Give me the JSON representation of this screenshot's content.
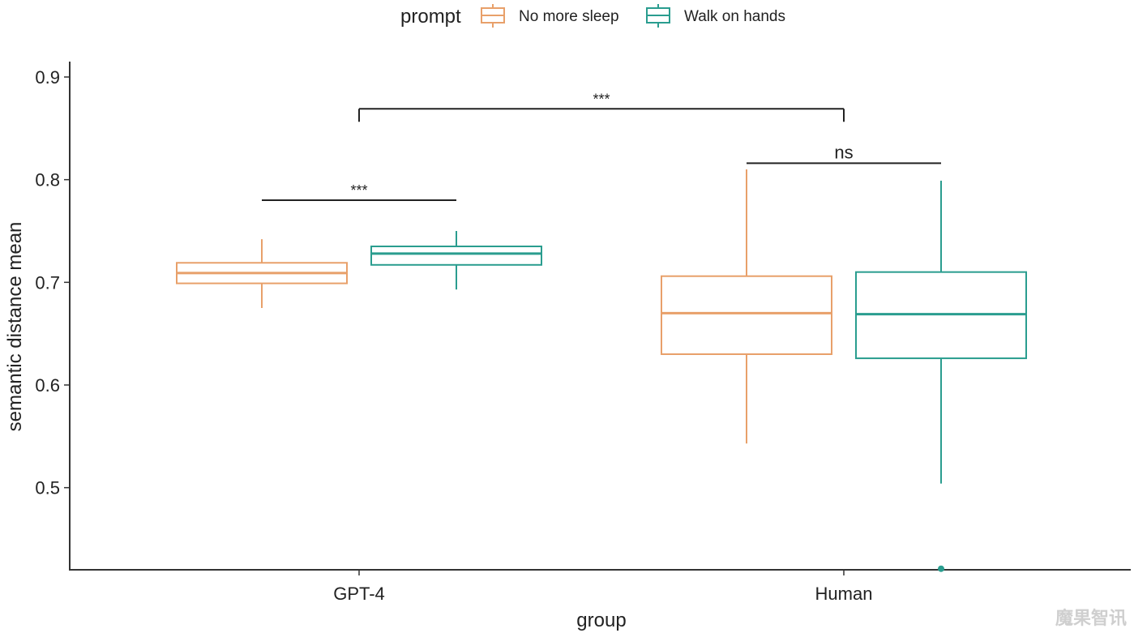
{
  "chart_data": {
    "type": "boxplot",
    "legend": {
      "title": "prompt",
      "placement": "top",
      "entries": [
        {
          "label": "No more sleep",
          "color": "#E8A06A"
        },
        {
          "label": "Walk on hands",
          "color": "#2A9D8F"
        }
      ]
    },
    "xlabel": "group",
    "ylabel": "semantic distance mean",
    "categories": [
      "GPT-4",
      "Human"
    ],
    "ylim": [
      0.42,
      0.915
    ],
    "yticks": [
      "0.5",
      "0.6",
      "0.7",
      "0.8",
      "0.9"
    ],
    "grid": false,
    "series": [
      {
        "name": "No more sleep",
        "color": "#E8A06A",
        "boxes": [
          {
            "group": "GPT-4",
            "whisker_low": 0.675,
            "q1": 0.699,
            "median": 0.709,
            "q3": 0.719,
            "whisker_high": 0.742
          },
          {
            "group": "Human",
            "whisker_low": 0.543,
            "q1": 0.63,
            "median": 0.67,
            "q3": 0.706,
            "whisker_high": 0.81
          }
        ]
      },
      {
        "name": "Walk on hands",
        "color": "#2A9D8F",
        "boxes": [
          {
            "group": "GPT-4",
            "whisker_low": 0.693,
            "q1": 0.717,
            "median": 0.728,
            "q3": 0.735,
            "whisker_high": 0.75
          },
          {
            "group": "Human",
            "whisker_low": 0.504,
            "q1": 0.626,
            "median": 0.669,
            "q3": 0.71,
            "whisker_high": 0.799,
            "outliers": [
              0.421
            ]
          }
        ]
      }
    ],
    "significance": [
      {
        "from": {
          "group": "GPT-4",
          "series": "No more sleep"
        },
        "to": {
          "group": "GPT-4",
          "series": "Walk on hands"
        },
        "y": 0.78,
        "label": "***",
        "ticks": false
      },
      {
        "from": {
          "group": "Human",
          "series": "No more sleep"
        },
        "to": {
          "group": "Human",
          "series": "Walk on hands"
        },
        "y": 0.816,
        "label": "ns",
        "ticks": false
      },
      {
        "from": {
          "group": "GPT-4"
        },
        "to": {
          "group": "Human"
        },
        "y": 0.869,
        "label": "***",
        "ticks": true
      }
    ]
  },
  "watermark": {
    "text": "魔果智讯"
  }
}
